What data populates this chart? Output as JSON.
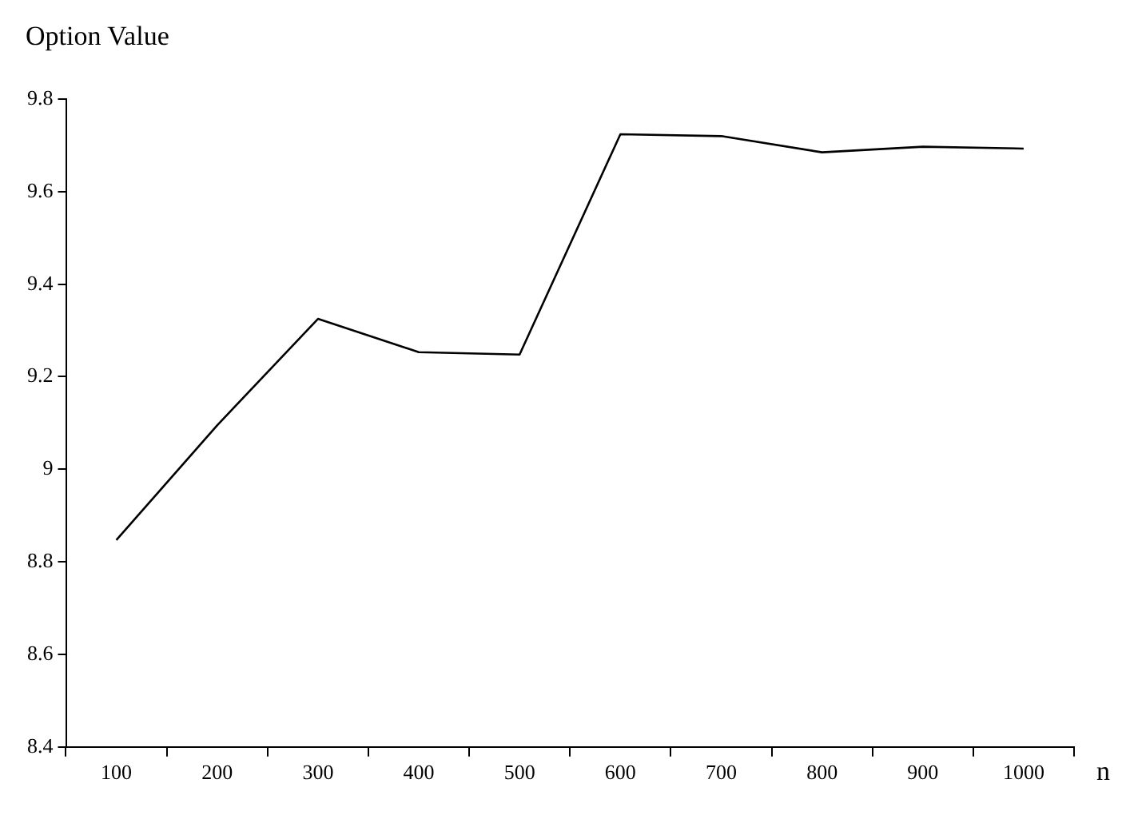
{
  "chart_data": {
    "type": "line",
    "ylabel": "Option Value",
    "xlabel": "n",
    "categories": [
      "100",
      "200",
      "300",
      "400",
      "500",
      "600",
      "700",
      "800",
      "900",
      "1000"
    ],
    "series": [
      {
        "color": "#000000",
        "values": [
          8.847,
          9.095,
          9.325,
          9.253,
          9.248,
          9.724,
          9.72,
          9.685,
          9.697,
          9.693
        ]
      }
    ],
    "ylim": [
      8.4,
      9.8
    ],
    "yticks": [
      8.4,
      8.6,
      8.8,
      9,
      9.2,
      9.4,
      9.6,
      9.8
    ],
    "grid": false,
    "legend": false,
    "marker": "none",
    "line_style": "solid"
  }
}
